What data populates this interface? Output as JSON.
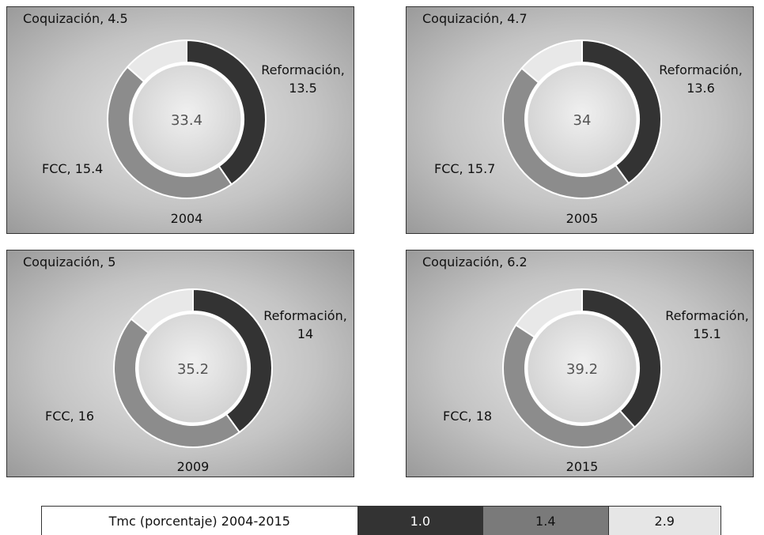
{
  "chart_data": [
    {
      "type": "donut",
      "title": "2004",
      "total_label": "33.4",
      "categories": [
        "Reformación",
        "FCC",
        "Coquización"
      ],
      "values": [
        13.5,
        15.4,
        4.5
      ],
      "value_labels": [
        "Reformación, 13.5",
        "FCC, 15.4",
        "Coquización, 4.5"
      ],
      "colors": [
        "#333333",
        "#8c8c8c",
        "#e8e8e8"
      ]
    },
    {
      "type": "donut",
      "title": "2005",
      "total_label": "34",
      "categories": [
        "Reformación",
        "FCC",
        "Coquización"
      ],
      "values": [
        13.6,
        15.7,
        4.7
      ],
      "value_labels": [
        "Reformación, 13.6",
        "FCC, 15.7",
        "Coquización, 4.7"
      ],
      "colors": [
        "#333333",
        "#8c8c8c",
        "#e8e8e8"
      ]
    },
    {
      "type": "donut",
      "title": "2009",
      "total_label": "35.2",
      "categories": [
        "Reformación",
        "FCC",
        "Coquización"
      ],
      "values": [
        14,
        16,
        5
      ],
      "value_labels": [
        "Reformación, 14",
        "FCC, 16",
        "Coquización, 5"
      ],
      "colors": [
        "#333333",
        "#8c8c8c",
        "#e8e8e8"
      ]
    },
    {
      "type": "donut",
      "title": "2015",
      "total_label": "39.2",
      "categories": [
        "Reformación",
        "FCC",
        "Coquización"
      ],
      "values": [
        15.1,
        18,
        6.2
      ],
      "value_labels": [
        "Reformación, 15.1",
        "FCC, 18",
        "Coquización, 6.2"
      ],
      "colors": [
        "#333333",
        "#8c8c8c",
        "#e8e8e8"
      ]
    }
  ],
  "table": {
    "label": "Tmc (porcentaje) 2004-2015",
    "cells": [
      {
        "text": "1.0",
        "color": "#333333"
      },
      {
        "text": "1.4",
        "color": "#7a7a7a"
      },
      {
        "text": "2.9",
        "color": "#e6e6e6"
      }
    ]
  }
}
